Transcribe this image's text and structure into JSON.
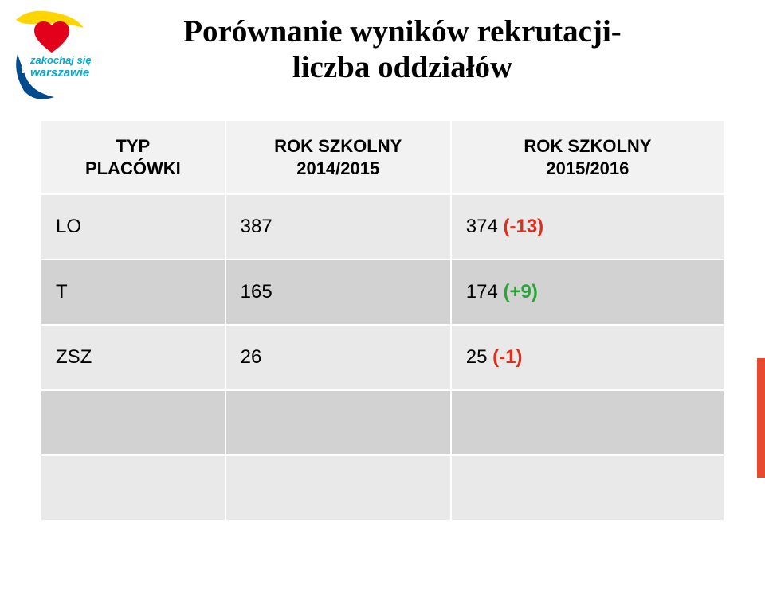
{
  "title_line1": "Porównanie wyników rekrutacji-",
  "title_line2": "liczba oddziałów",
  "logo": {
    "heart_color": "#e2001a",
    "text_color": "#00aad2",
    "top_swoosh_color": "#ffd500",
    "bottom_block_color": "#004b8d",
    "label1": "zakochaj się",
    "label2": "warszawie"
  },
  "table": {
    "headers": {
      "col1_line1": "TYP",
      "col1_line2": "PLACÓWKI",
      "col2_line1": "ROK SZKOLNY",
      "col2_line2": "2014/2015",
      "col3_line1": "ROK SZKOLNY",
      "col3_line2": "2015/2016"
    },
    "rows": [
      {
        "label": "LO",
        "v2014": "387",
        "v2015": "374",
        "delta": "(-13)",
        "delta_class": "delta-neg"
      },
      {
        "label": "T",
        "v2014": "165",
        "v2015": "174",
        "delta": "(+9)",
        "delta_class": "delta-pos"
      },
      {
        "label": "ZSZ",
        "v2014": "26",
        "v2015": "25",
        "delta": "(-1)",
        "delta_class": "delta-neg"
      }
    ],
    "blank_rows": 2
  },
  "colors": {
    "header_bg": "#f2f2f2",
    "row_odd_bg": "#e9e9e9",
    "row_even_bg": "#d2d2d2",
    "neg": "#de2f1a",
    "pos": "#2aa637",
    "side_bar": "#e84a2e"
  }
}
